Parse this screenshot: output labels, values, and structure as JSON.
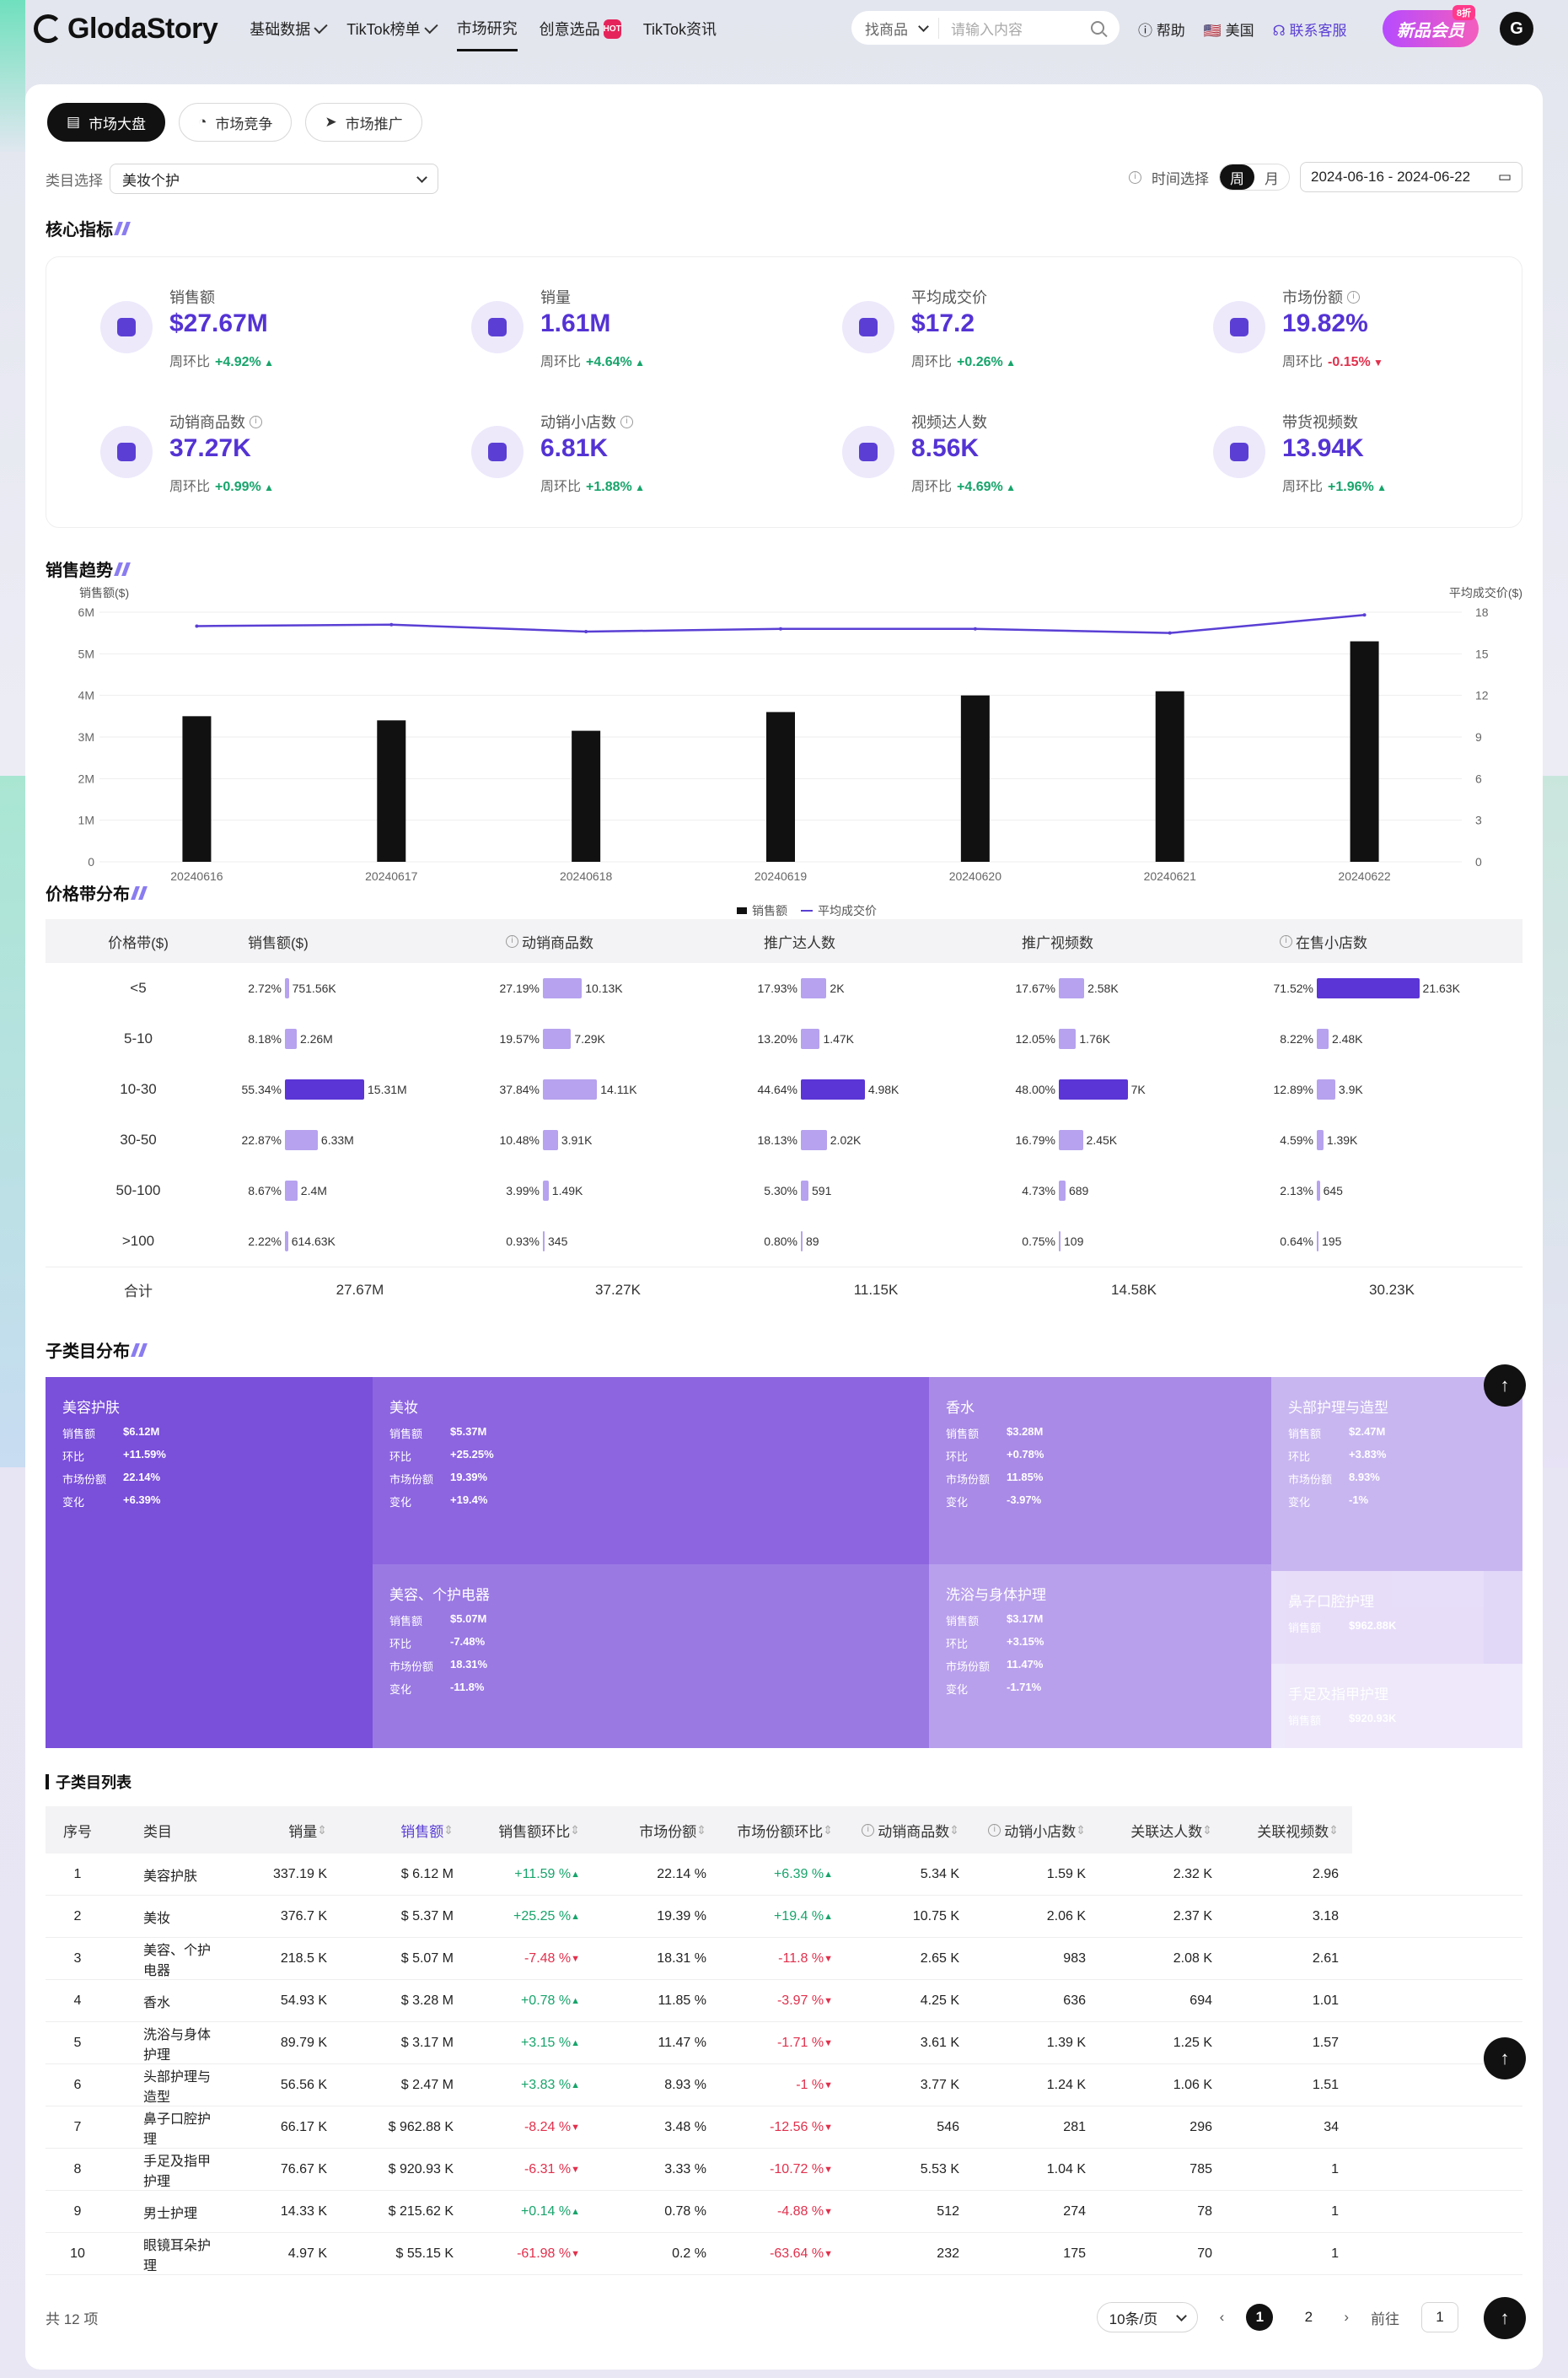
{
  "header": {
    "logo": "GlodaStory",
    "nav": [
      {
        "label": "基础数据",
        "dd": true
      },
      {
        "label": "TikTok榜单",
        "dd": true
      },
      {
        "label": "市场研究",
        "active": true
      },
      {
        "label": "创意选品",
        "hot": "HOT"
      },
      {
        "label": "TikTok资讯"
      }
    ],
    "search_select": "找商品",
    "search_placeholder": "请输入内容",
    "help": "帮助",
    "region": "美国",
    "service": "联系客服",
    "vip": "新品会员",
    "vip_badge": "8折",
    "avatar": "G"
  },
  "tabs": [
    "市场大盘",
    "市场竞争",
    "市场推广"
  ],
  "filter": {
    "label": "类目选择",
    "value": "美妆个护",
    "time_label": "时间选择",
    "week": "周",
    "month": "月",
    "date": "2024-06-16 - 2024-06-22"
  },
  "sections": {
    "core": "核心指标",
    "trend": "销售趋势",
    "price": "价格带分布",
    "sub": "子类目分布",
    "list": "子类目列表"
  },
  "metrics": [
    {
      "label": "销售额",
      "value": "$27.67M",
      "sub": "周环比",
      "change": "+4.92%",
      "dir": "up",
      "icon": "money-bag-icon"
    },
    {
      "label": "销量",
      "value": "1.61M",
      "sub": "周环比",
      "change": "+4.64%",
      "dir": "up",
      "icon": "trend-chart-icon"
    },
    {
      "label": "平均成交价",
      "value": "$17.2",
      "sub": "周环比",
      "change": "+0.26%",
      "dir": "up",
      "icon": "price-tag-icon"
    },
    {
      "label": "市场份额",
      "value": "19.82%",
      "sub": "周环比",
      "change": "-0.15%",
      "dir": "dn",
      "icon": "grid-icon",
      "info": true
    },
    {
      "label": "动销商品数",
      "value": "37.27K",
      "sub": "周环比",
      "change": "+0.99%",
      "dir": "up",
      "icon": "shopping-bag-icon",
      "info": true
    },
    {
      "label": "动销小店数",
      "value": "6.81K",
      "sub": "周环比",
      "change": "+1.88%",
      "dir": "up",
      "icon": "store-icon",
      "info": true
    },
    {
      "label": "视频达人数",
      "value": "8.56K",
      "sub": "周环比",
      "change": "+4.69%",
      "dir": "up",
      "icon": "user-icon"
    },
    {
      "label": "带货视频数",
      "value": "13.94K",
      "sub": "周环比",
      "change": "+1.96%",
      "dir": "up",
      "icon": "video-icon"
    }
  ],
  "chart_data": {
    "type": "bar",
    "categories": [
      "20240616",
      "20240617",
      "20240618",
      "20240619",
      "20240620",
      "20240621",
      "20240622"
    ],
    "series": [
      {
        "name": "销售额",
        "axis": "left",
        "values": [
          3.5,
          3.4,
          3.15,
          3.6,
          4.0,
          4.1,
          5.3
        ],
        "color": "#111111"
      },
      {
        "name": "平均成交价",
        "axis": "right",
        "type": "line",
        "values": [
          17.0,
          17.1,
          16.6,
          16.8,
          16.8,
          16.5,
          17.8
        ],
        "color": "#5a3fd4"
      }
    ],
    "ylabel": "销售额($)",
    "y2label": "平均成交价($)",
    "ylim": [
      0,
      6
    ],
    "y2lim": [
      0,
      18
    ],
    "yticks": [
      "0",
      "1M",
      "2M",
      "3M",
      "4M",
      "5M",
      "6M"
    ],
    "y2ticks": [
      "0",
      "3",
      "6",
      "9",
      "12",
      "15",
      "18"
    ],
    "legend": "bottom"
  },
  "price_table": {
    "headers": [
      "价格带($)",
      "销售额($)",
      "动销商品数",
      "推广达人数",
      "推广视频数",
      "在售小店数"
    ],
    "rows": [
      {
        "band": "<5",
        "cells": [
          [
            "2.72%",
            "751.56K",
            0.027
          ],
          [
            "27.19%",
            "10.13K",
            0.272
          ],
          [
            "17.93%",
            "2K",
            0.179
          ],
          [
            "17.67%",
            "2.58K",
            0.177
          ],
          [
            "71.52%",
            "21.63K",
            0.715
          ]
        ]
      },
      {
        "band": "5-10",
        "cells": [
          [
            "8.18%",
            "2.26M",
            0.082
          ],
          [
            "19.57%",
            "7.29K",
            0.196
          ],
          [
            "13.20%",
            "1.47K",
            0.132
          ],
          [
            "12.05%",
            "1.76K",
            0.12
          ],
          [
            "8.22%",
            "2.48K",
            0.082
          ]
        ]
      },
      {
        "band": "10-30",
        "cells": [
          [
            "55.34%",
            "15.31M",
            0.553
          ],
          [
            "37.84%",
            "14.11K",
            0.378
          ],
          [
            "44.64%",
            "4.98K",
            0.446
          ],
          [
            "48.00%",
            "7K",
            0.48
          ],
          [
            "12.89%",
            "3.9K",
            0.129
          ]
        ]
      },
      {
        "band": "30-50",
        "cells": [
          [
            "22.87%",
            "6.33M",
            0.229
          ],
          [
            "10.48%",
            "3.91K",
            0.105
          ],
          [
            "18.13%",
            "2.02K",
            0.181
          ],
          [
            "16.79%",
            "2.45K",
            0.168
          ],
          [
            "4.59%",
            "1.39K",
            0.046
          ]
        ]
      },
      {
        "band": "50-100",
        "cells": [
          [
            "8.67%",
            "2.4M",
            0.087
          ],
          [
            "3.99%",
            "1.49K",
            0.04
          ],
          [
            "5.30%",
            "591",
            0.053
          ],
          [
            "4.73%",
            "689",
            0.047
          ],
          [
            "2.13%",
            "645",
            0.021
          ]
        ]
      },
      {
        "band": ">100",
        "cells": [
          [
            "2.22%",
            "614.63K",
            0.022
          ],
          [
            "0.93%",
            "345",
            0.009
          ],
          [
            "0.80%",
            "89",
            0.008
          ],
          [
            "0.75%",
            "109",
            0.008
          ],
          [
            "0.64%",
            "195",
            0.006
          ]
        ]
      }
    ],
    "total_label": "合计",
    "totals": [
      "27.67M",
      "37.27K",
      "11.15K",
      "14.58K",
      "30.23K"
    ]
  },
  "treemap": {
    "labels": {
      "sales": "销售额",
      "ring": "环比",
      "share": "市场份额",
      "change": "变化"
    },
    "items": [
      {
        "name": "美容护肤",
        "sales": "$6.12M",
        "ring": "+11.59%",
        "share": "22.14%",
        "change": "+6.39%"
      },
      {
        "name": "美妆",
        "sales": "$5.37M",
        "ring": "+25.25%",
        "share": "19.39%",
        "change": "+19.4%"
      },
      {
        "name": "美容、个护电器",
        "sales": "$5.07M",
        "ring": "-7.48%",
        "share": "18.31%",
        "change": "-11.8%"
      },
      {
        "name": "香水",
        "sales": "$3.28M",
        "ring": "+0.78%",
        "share": "11.85%",
        "change": "-3.97%"
      },
      {
        "name": "洗浴与身体护理",
        "sales": "$3.17M",
        "ring": "+3.15%",
        "share": "11.47%",
        "change": "-1.71%"
      },
      {
        "name": "头部护理与造型",
        "sales": "$2.47M",
        "ring": "+3.83%",
        "share": "8.93%",
        "change": "-1%"
      },
      {
        "name": "鼻子口腔护理",
        "sales": "$962.88K"
      },
      {
        "name": "手足及指甲护理",
        "sales": "$920.93K"
      }
    ]
  },
  "list": {
    "headers": [
      "序号",
      "类目",
      "销量",
      "销售额",
      "销售额环比",
      "市场份额",
      "市场份额环比",
      "动销商品数",
      "动销小店数",
      "关联达人数",
      "关联视频数"
    ],
    "rows": [
      [
        "1",
        "美容护肤",
        "337.19 K",
        "$ 6.12 M",
        "+11.59 %",
        "22.14 %",
        "+6.39 %",
        "5.34 K",
        "1.59 K",
        "2.32 K",
        "2.96"
      ],
      [
        "2",
        "美妆",
        "376.7 K",
        "$ 5.37 M",
        "+25.25 %",
        "19.39 %",
        "+19.4 %",
        "10.75 K",
        "2.06 K",
        "2.37 K",
        "3.18"
      ],
      [
        "3",
        "美容、个护电器",
        "218.5 K",
        "$ 5.07 M",
        "-7.48 %",
        "18.31 %",
        "-11.8 %",
        "2.65 K",
        "983",
        "2.08 K",
        "2.61"
      ],
      [
        "4",
        "香水",
        "54.93 K",
        "$ 3.28 M",
        "+0.78 %",
        "11.85 %",
        "-3.97 %",
        "4.25 K",
        "636",
        "694",
        "1.01"
      ],
      [
        "5",
        "洗浴与身体护理",
        "89.79 K",
        "$ 3.17 M",
        "+3.15 %",
        "11.47 %",
        "-1.71 %",
        "3.61 K",
        "1.39 K",
        "1.25 K",
        "1.57"
      ],
      [
        "6",
        "头部护理与造型",
        "56.56 K",
        "$ 2.47 M",
        "+3.83 %",
        "8.93 %",
        "-1 %",
        "3.77 K",
        "1.24 K",
        "1.06 K",
        "1.51"
      ],
      [
        "7",
        "鼻子口腔护理",
        "66.17 K",
        "$ 962.88 K",
        "-8.24 %",
        "3.48 %",
        "-12.56 %",
        "546",
        "281",
        "296",
        "34"
      ],
      [
        "8",
        "手足及指甲护理",
        "76.67 K",
        "$ 920.93 K",
        "-6.31 %",
        "3.33 %",
        "-10.72 %",
        "5.53 K",
        "1.04 K",
        "785",
        "1"
      ],
      [
        "9",
        "男士护理",
        "14.33 K",
        "$ 215.62 K",
        "+0.14 %",
        "0.78 %",
        "-4.88 %",
        "512",
        "274",
        "78",
        "1"
      ],
      [
        "10",
        "眼镜耳朵护理",
        "4.97 K",
        "$ 55.15 K",
        "-61.98 %",
        "0.2 %",
        "-63.64 %",
        "232",
        "175",
        "70",
        "1"
      ]
    ]
  },
  "pager": {
    "total": "共 12 项",
    "size": "10条/页",
    "pages": [
      "1",
      "2"
    ],
    "goto": "前往",
    "goto_val": "1"
  }
}
